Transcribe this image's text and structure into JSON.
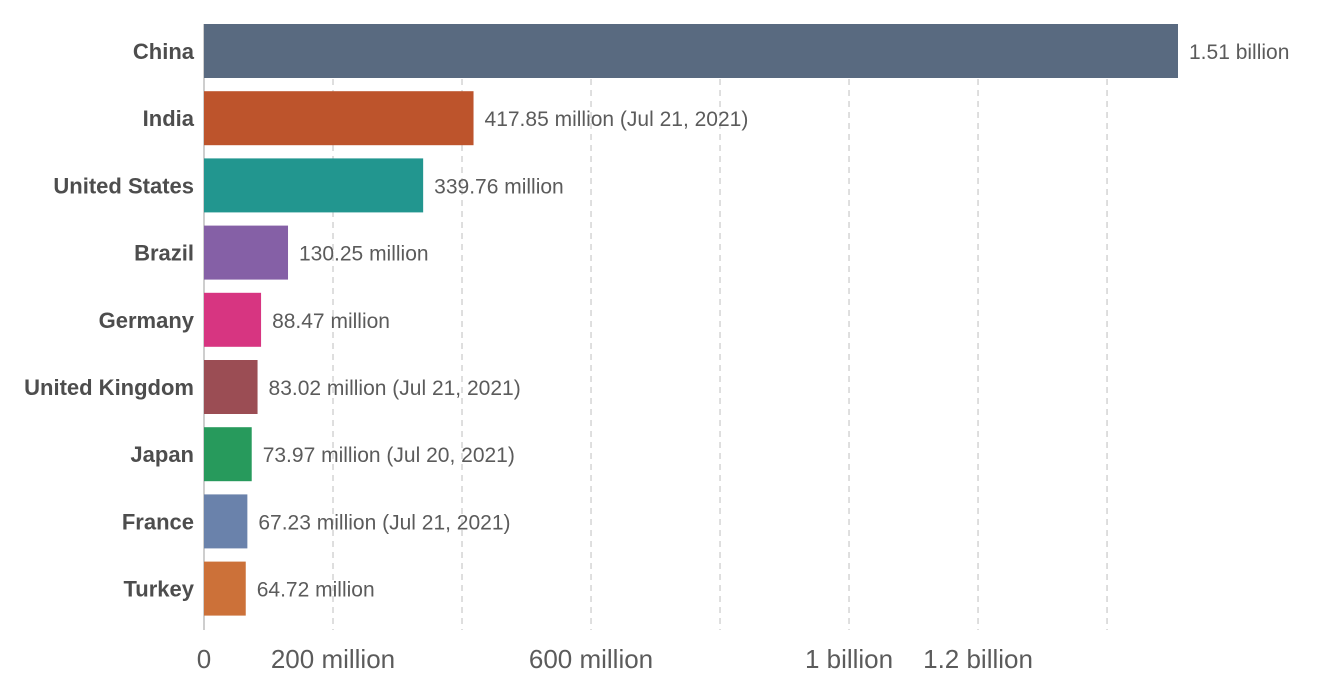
{
  "chart_data": {
    "type": "bar",
    "orientation": "horizontal",
    "categories": [
      "China",
      "India",
      "United States",
      "Brazil",
      "Germany",
      "United Kingdom",
      "Japan",
      "France",
      "Turkey"
    ],
    "values": [
      1510000000,
      417850000,
      339760000,
      130250000,
      88470000,
      83020000,
      73970000,
      67230000,
      64720000
    ],
    "value_labels": [
      "1.51 billion",
      "417.85 million (Jul 21, 2021)",
      "339.76 million",
      "130.25 million",
      "88.47 million",
      "83.02 million (Jul 21, 2021)",
      "73.97 million (Jul 20, 2021)",
      "67.23 million (Jul 21, 2021)",
      "64.72 million"
    ],
    "colors": [
      "#596a80",
      "#bd542c",
      "#22968f",
      "#8560a6",
      "#d73581",
      "#9b4d54",
      "#279a5c",
      "#6a82ab",
      "#cc7139"
    ],
    "xlim": [
      0,
      1510000000
    ],
    "gridlines": [
      200000000,
      400000000,
      600000000,
      800000000,
      1000000000,
      1200000000,
      1400000000
    ],
    "ticks": [
      {
        "value": 0,
        "label": "0"
      },
      {
        "value": 200000000,
        "label": "200 million"
      },
      {
        "value": 600000000,
        "label": "600 million"
      },
      {
        "value": 1000000000,
        "label": "1 billion"
      },
      {
        "value": 1200000000,
        "label": "1.2 billion"
      }
    ],
    "grid": true,
    "grid_style": "dashed"
  }
}
